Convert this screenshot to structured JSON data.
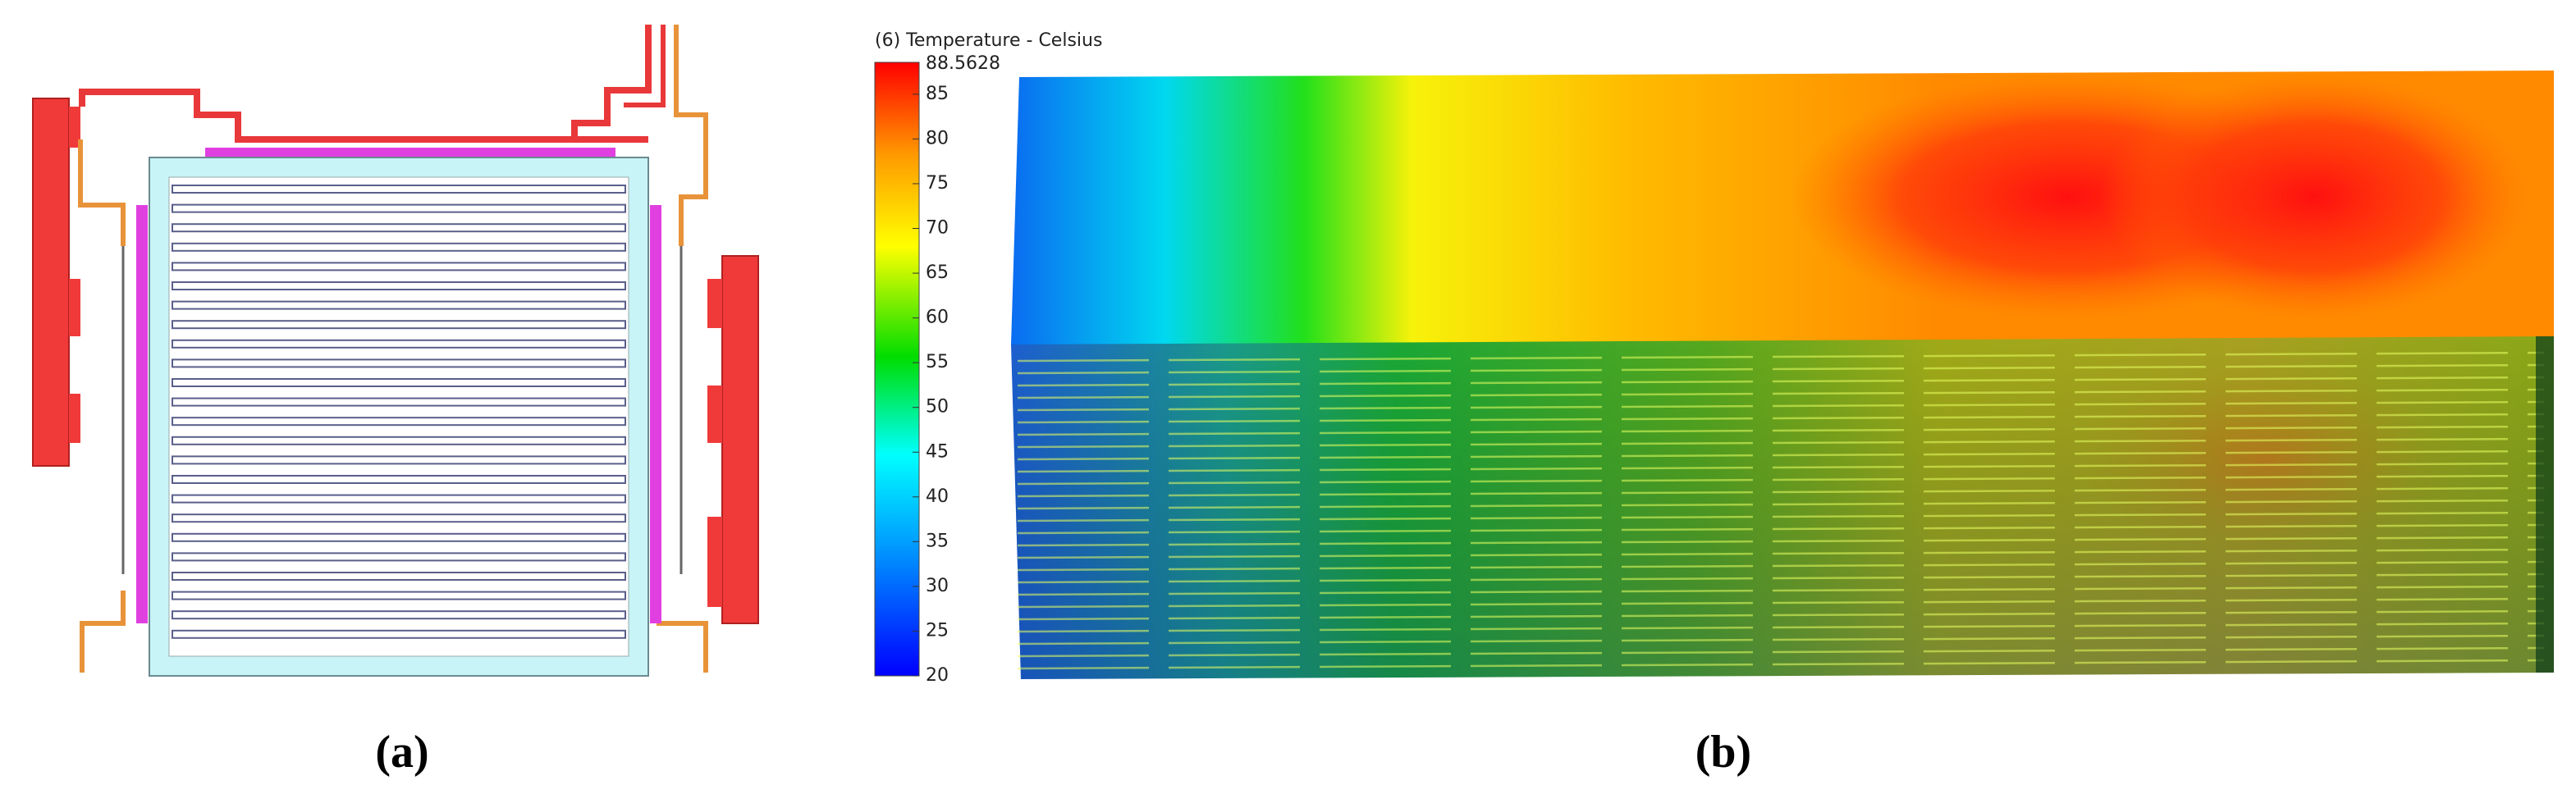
{
  "panel_a": {
    "label": "(a)"
  },
  "panel_b": {
    "label": "(b)",
    "colorbar": {
      "title": "(6) Temperature - Celsius",
      "lim": [
        20,
        88.5628
      ],
      "ticks": [
        20,
        25,
        30,
        35,
        40,
        45,
        50,
        55,
        60,
        65,
        70,
        75,
        80,
        85
      ]
    }
  }
}
